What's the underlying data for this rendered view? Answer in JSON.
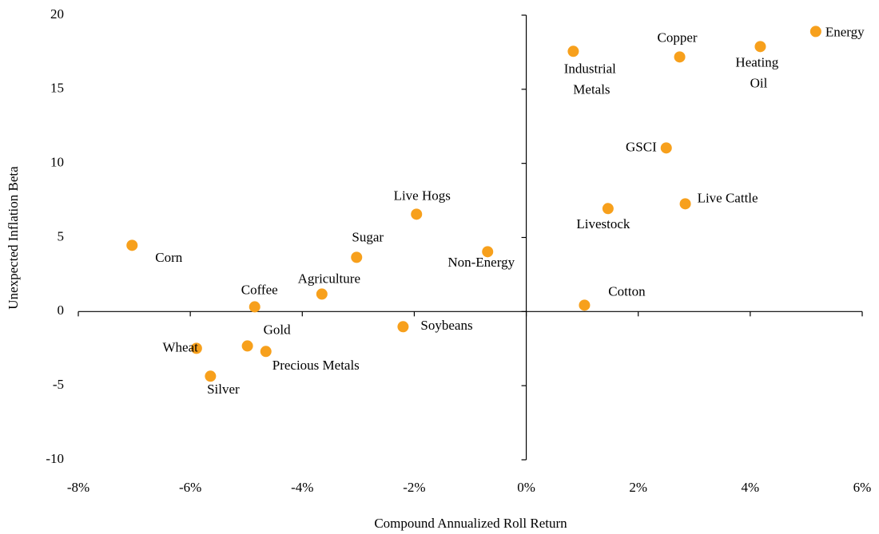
{
  "chart_data": {
    "type": "scatter",
    "x_label": "Compound Annualized Roll Return",
    "y_label": "Unexpected Inflation Beta",
    "color": "#f7a01c",
    "xlim": [
      -8,
      6
    ],
    "xticks": [
      {
        "value": -8,
        "label": "-8%"
      },
      {
        "value": -6,
        "label": "-6%"
      },
      {
        "value": -4,
        "label": "-4%"
      },
      {
        "value": -2,
        "label": "-2%"
      },
      {
        "value": 0,
        "label": "0%"
      },
      {
        "value": 2,
        "label": "2%"
      },
      {
        "value": 4,
        "label": "4%"
      },
      {
        "value": 6,
        "label": "6%"
      }
    ],
    "ylim": [
      -10,
      20
    ],
    "yticks": [
      20,
      15,
      10,
      5,
      0,
      -5,
      -10
    ],
    "labels": [
      "Corn",
      "Wheat",
      "Silver",
      "Gold",
      "Precious Metals",
      "Coffee",
      "Agriculture",
      "Sugar",
      "Live Hogs",
      "Soybeans",
      "Non-Energy",
      "Industrial Metals",
      "Copper",
      "Heating Oil",
      "Energy",
      "GSCI",
      "Livestock",
      "Live Cattle",
      "Cotton"
    ],
    "x": [
      -7.04,
      -5.89,
      -5.64,
      -4.98,
      -4.65,
      -4.85,
      -3.65,
      -3.03,
      -1.96,
      -2.2,
      -0.69,
      0.84,
      2.74,
      4.18,
      5.17,
      2.5,
      1.46,
      2.84,
      1.04
    ],
    "values": [
      4.47,
      -2.48,
      -4.36,
      -2.32,
      -2.69,
      0.32,
      1.18,
      3.66,
      6.57,
      -1.02,
      4.04,
      17.56,
      17.18,
      17.88,
      18.9,
      11.04,
      6.95,
      7.27,
      0.43
    ]
  }
}
